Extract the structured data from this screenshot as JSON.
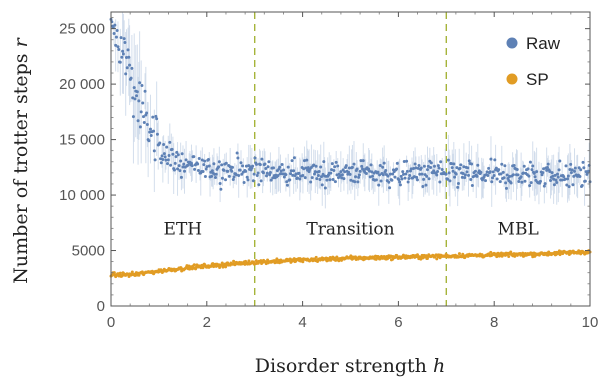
{
  "chart_data": {
    "type": "scatter",
    "title": "",
    "xlabel": "Disorder strength",
    "xlabel_var": "h",
    "ylabel": "Number of  trotter steps",
    "ylabel_var": "r",
    "xlim": [
      0,
      10
    ],
    "ylim": [
      0,
      26500
    ],
    "xticks": [
      0,
      2,
      4,
      6,
      8,
      10
    ],
    "xtick_labels": [
      "0",
      "2",
      "4",
      "6",
      "8",
      "10"
    ],
    "yticks": [
      0,
      5000,
      10000,
      15000,
      20000,
      25000
    ],
    "ytick_labels": [
      "0",
      "5000",
      "10 000",
      "15 000",
      "20 000",
      "25 000"
    ],
    "grid": false,
    "legend_position": "top-right",
    "phase_boundaries": [
      3,
      7
    ],
    "regions": [
      {
        "label": "ETH",
        "x": 1.5,
        "y": 7000
      },
      {
        "label": "Transition",
        "x": 5.0,
        "y": 7000
      },
      {
        "label": "MBL",
        "x": 8.5,
        "y": 7000
      }
    ],
    "series": [
      {
        "name": "Raw",
        "color": "#5e81b5",
        "error_color": "#c5d3e6",
        "x": [
          0.0,
          0.25,
          0.5,
          0.75,
          1.0,
          1.25,
          1.5,
          2.0,
          2.5,
          3.0,
          3.5,
          4.0,
          4.5,
          5.0,
          5.5,
          6.0,
          6.5,
          7.0,
          7.5,
          8.0,
          8.5,
          9.0,
          9.5,
          10.0
        ],
        "y": [
          25500,
          23000,
          19500,
          16500,
          14500,
          13300,
          12800,
          12300,
          12200,
          12200,
          12100,
          12000,
          12000,
          12000,
          11900,
          11900,
          11900,
          11900,
          11900,
          11900,
          11800,
          11800,
          11800,
          11800
        ],
        "y_spread": [
          600,
          2000,
          2500,
          2300,
          1800,
          1300,
          1100,
          1000,
          1000,
          1000,
          1000,
          1000,
          1000,
          1000,
          1000,
          1000,
          1000,
          1100,
          1100,
          1100,
          1100,
          1100,
          1100,
          1100
        ]
      },
      {
        "name": "SP",
        "color": "#e19c24",
        "x": [
          0.0,
          0.5,
          1.0,
          1.5,
          2.0,
          3.0,
          4.0,
          5.0,
          6.0,
          7.0,
          8.0,
          9.0,
          10.0
        ],
        "y": [
          2800,
          2850,
          3150,
          3400,
          3600,
          3950,
          4150,
          4300,
          4400,
          4500,
          4600,
          4700,
          4900
        ],
        "y_spread": [
          90,
          90,
          90,
          90,
          90,
          90,
          90,
          90,
          90,
          90,
          90,
          90,
          90
        ]
      }
    ]
  }
}
